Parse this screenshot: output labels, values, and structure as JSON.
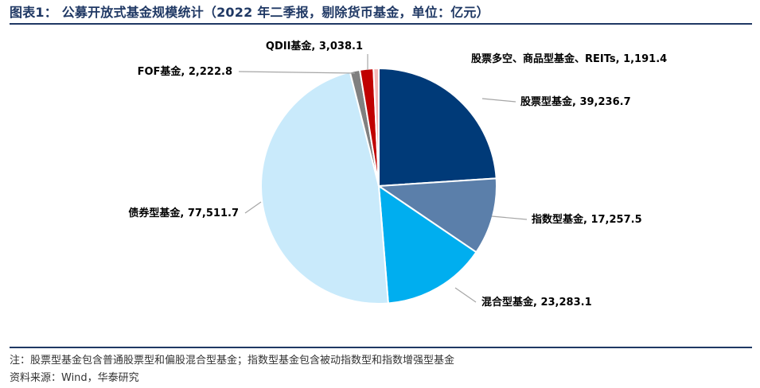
{
  "header": {
    "title": "图表1：  公募开放式基金规模统计（2022 年二季报，剔除货币基金，单位：亿元）"
  },
  "footer": {
    "note": "注：股票型基金包含普通股票型和偏股混合型基金；指数型基金包含被动指数型和指数增强型基金",
    "source": "资料来源：Wind，华泰研究"
  },
  "chart_data": {
    "type": "pie",
    "title": "公募开放式基金规模统计（2022 年二季报，剔除货币基金，单位：亿元）",
    "start_angle_deg": 90,
    "direction": "clockwise",
    "slices": [
      {
        "name": "股票型基金",
        "value": 39236.7,
        "label": "股票型基金, 39,236.7",
        "color": "#003a78"
      },
      {
        "name": "指数型基金",
        "value": 17257.5,
        "label": "指数型基金, 17,257.5",
        "color": "#5b7faa"
      },
      {
        "name": "混合型基金",
        "value": 23283.1,
        "label": "混合型基金, 23,283.1",
        "color": "#00aeef"
      },
      {
        "name": "债券型基金",
        "value": 77511.7,
        "label": "债券型基金, 77,511.7",
        "color": "#c9eafb"
      },
      {
        "name": "FOF基金",
        "value": 2222.8,
        "label": "FOF基金, 2,222.8",
        "color": "#808080"
      },
      {
        "name": "QDII基金",
        "value": 3038.1,
        "label": "QDII基金, 3,038.1",
        "color": "#c00000"
      },
      {
        "name": "股票多空、商品型基金、REITs",
        "value": 1191.4,
        "label": "股票多空、商品型基金、REITs, 1,191.4",
        "color": "#f4b6b6"
      }
    ]
  }
}
